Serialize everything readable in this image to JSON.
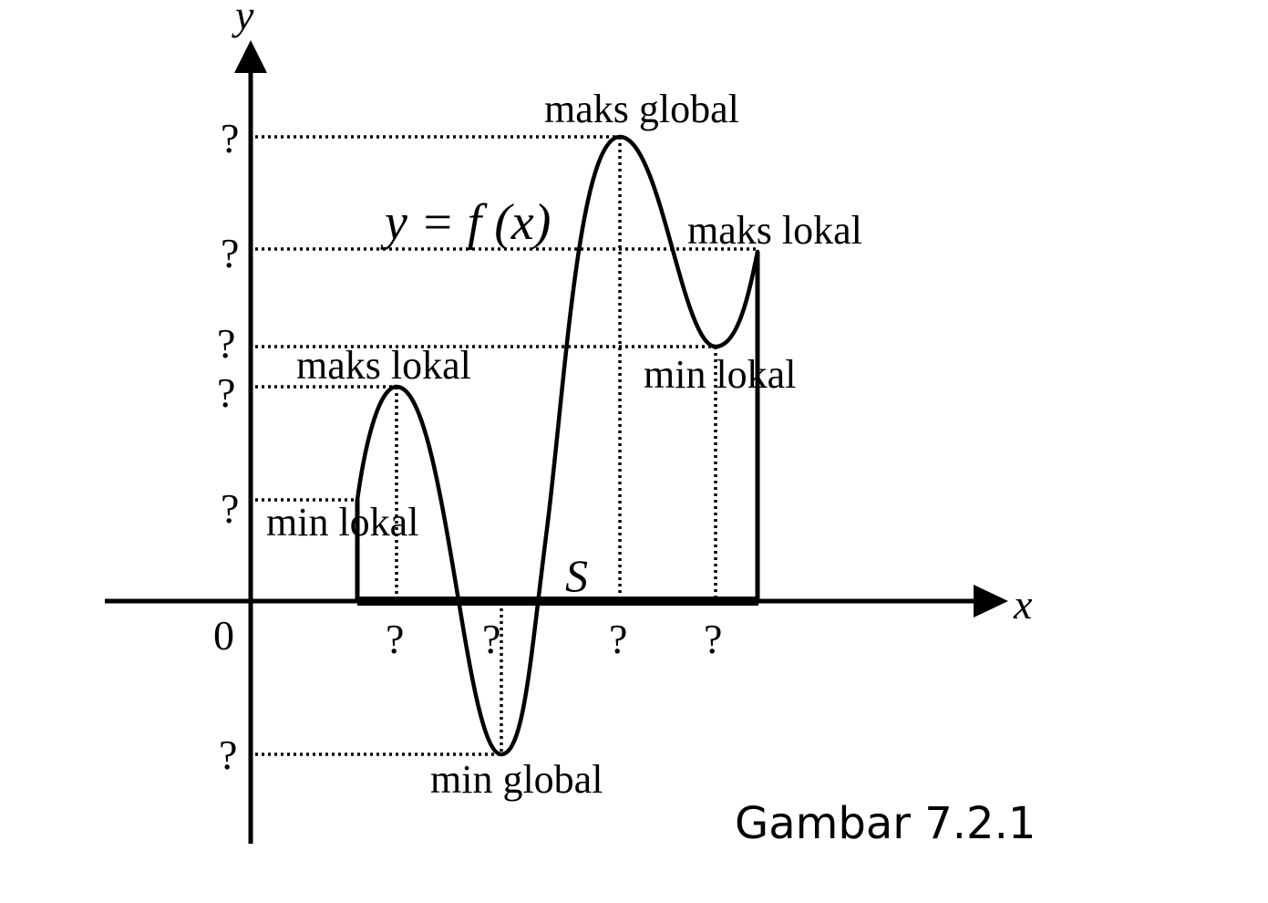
{
  "figure": {
    "axis_x_label": "x",
    "axis_y_label": "y",
    "origin_label": "0",
    "function_label": "y = f (x)",
    "set_label": "S",
    "unknown_mark": "?",
    "annotations": {
      "global_max": "maks global",
      "local_max_right": "maks lokal",
      "local_max_left": "maks lokal",
      "local_min_right": "min lokal",
      "local_min_left": "min lokal",
      "global_min": "min global"
    },
    "caption": "Gambar 7.2.1"
  }
}
